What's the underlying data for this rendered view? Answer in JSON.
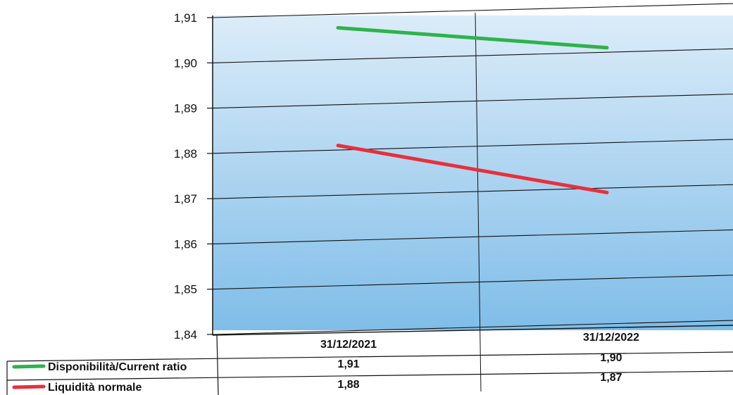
{
  "chart_data": {
    "type": "line",
    "categories": [
      "31/12/2021",
      "31/12/2022"
    ],
    "series": [
      {
        "name": "Disponibilità/Current ratio",
        "values": [
          1.907,
          1.901
        ],
        "labels": [
          "1,91",
          "1,90"
        ],
        "color": "#2db34a"
      },
      {
        "name": "Liquidità normale",
        "values": [
          1.881,
          1.869
        ],
        "labels": [
          "1,88",
          "1,87"
        ],
        "color": "#e8303a"
      }
    ],
    "ylim": [
      1.84,
      1.91
    ],
    "yticks": [
      "1,84",
      "1,85",
      "1,86",
      "1,87",
      "1,88",
      "1,89",
      "1,90",
      "1,91"
    ],
    "grid": true,
    "legend": "data-table-bottom",
    "plot_background": [
      "#dcecf9",
      "#7fbde8"
    ]
  }
}
